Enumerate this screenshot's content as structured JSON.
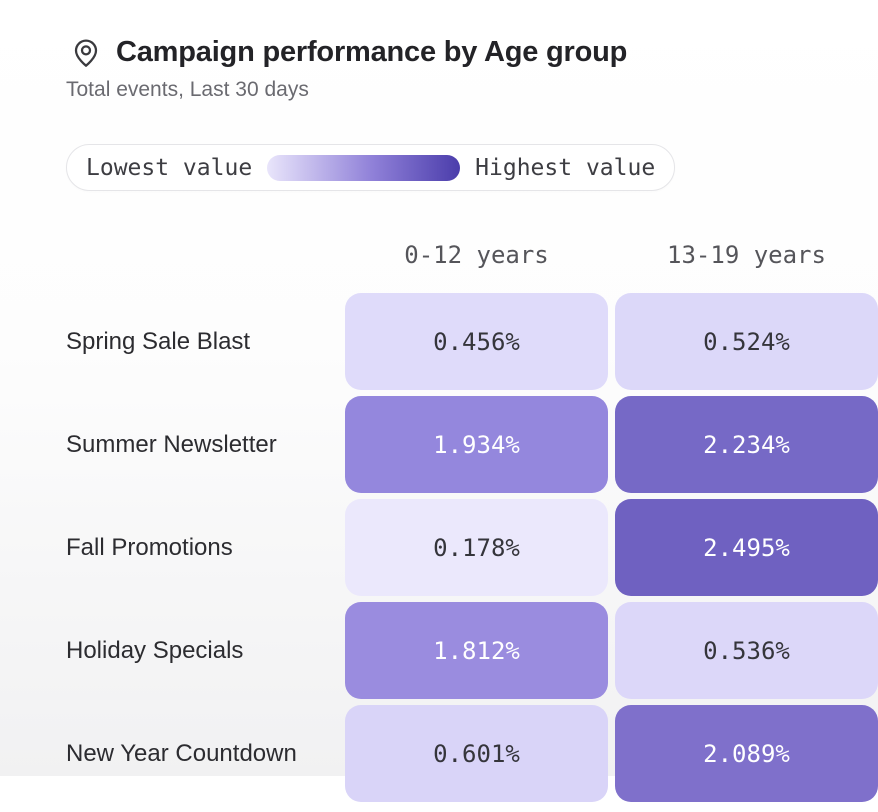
{
  "header": {
    "icon": "map-pin-icon",
    "title": "Campaign performance by Age group",
    "subtitle": "Total events, Last 30 days"
  },
  "legend": {
    "low_label": "Lowest value",
    "high_label": "Highest value",
    "gradient_start": "#e9e5fb",
    "gradient_mid": "#8f80d8",
    "gradient_end": "#4b3dab"
  },
  "chart_data": {
    "type": "heatmap",
    "title": "Campaign performance by Age group",
    "subtitle": "Total events, Last 30 days",
    "unit": "%",
    "columns": [
      "0-12 years",
      "13-19 years"
    ],
    "rows": [
      "Spring Sale Blast",
      "Summer Newsletter",
      "Fall Promotions",
      "Holiday Specials",
      "New Year Countdown"
    ],
    "values": [
      [
        0.456,
        0.524
      ],
      [
        1.934,
        2.234
      ],
      [
        0.178,
        2.495
      ],
      [
        1.812,
        0.536
      ],
      [
        0.601,
        2.089
      ]
    ],
    "cell_display": [
      [
        "0.456%",
        "0.524%"
      ],
      [
        "1.934%",
        "2.234%"
      ],
      [
        "0.178%",
        "2.495%"
      ],
      [
        "1.812%",
        "0.536%"
      ],
      [
        "0.601%",
        "2.089%"
      ]
    ],
    "cell_colors": [
      [
        "#dfdbfa",
        "#dcd8f9"
      ],
      [
        "#9487dd",
        "#7669c6"
      ],
      [
        "#ebe8fc",
        "#6f61c1"
      ],
      [
        "#9a8cdf",
        "#dcd7f9"
      ],
      [
        "#d9d4f8",
        "#7f70cb"
      ]
    ],
    "cell_text_colors": [
      [
        "#35353b",
        "#35353b"
      ],
      [
        "#ffffff",
        "#ffffff"
      ],
      [
        "#35353b",
        "#ffffff"
      ],
      [
        "#ffffff",
        "#35353b"
      ],
      [
        "#35353b",
        "#ffffff"
      ]
    ],
    "color_scale": {
      "min_color": "#ebe8fc",
      "max_color": "#4b3dab",
      "min": 0.178,
      "max": 2.495
    },
    "layout": {
      "legend_position": "top",
      "grid": false,
      "last_column_clipped": true,
      "last_row_clipped": true
    }
  }
}
